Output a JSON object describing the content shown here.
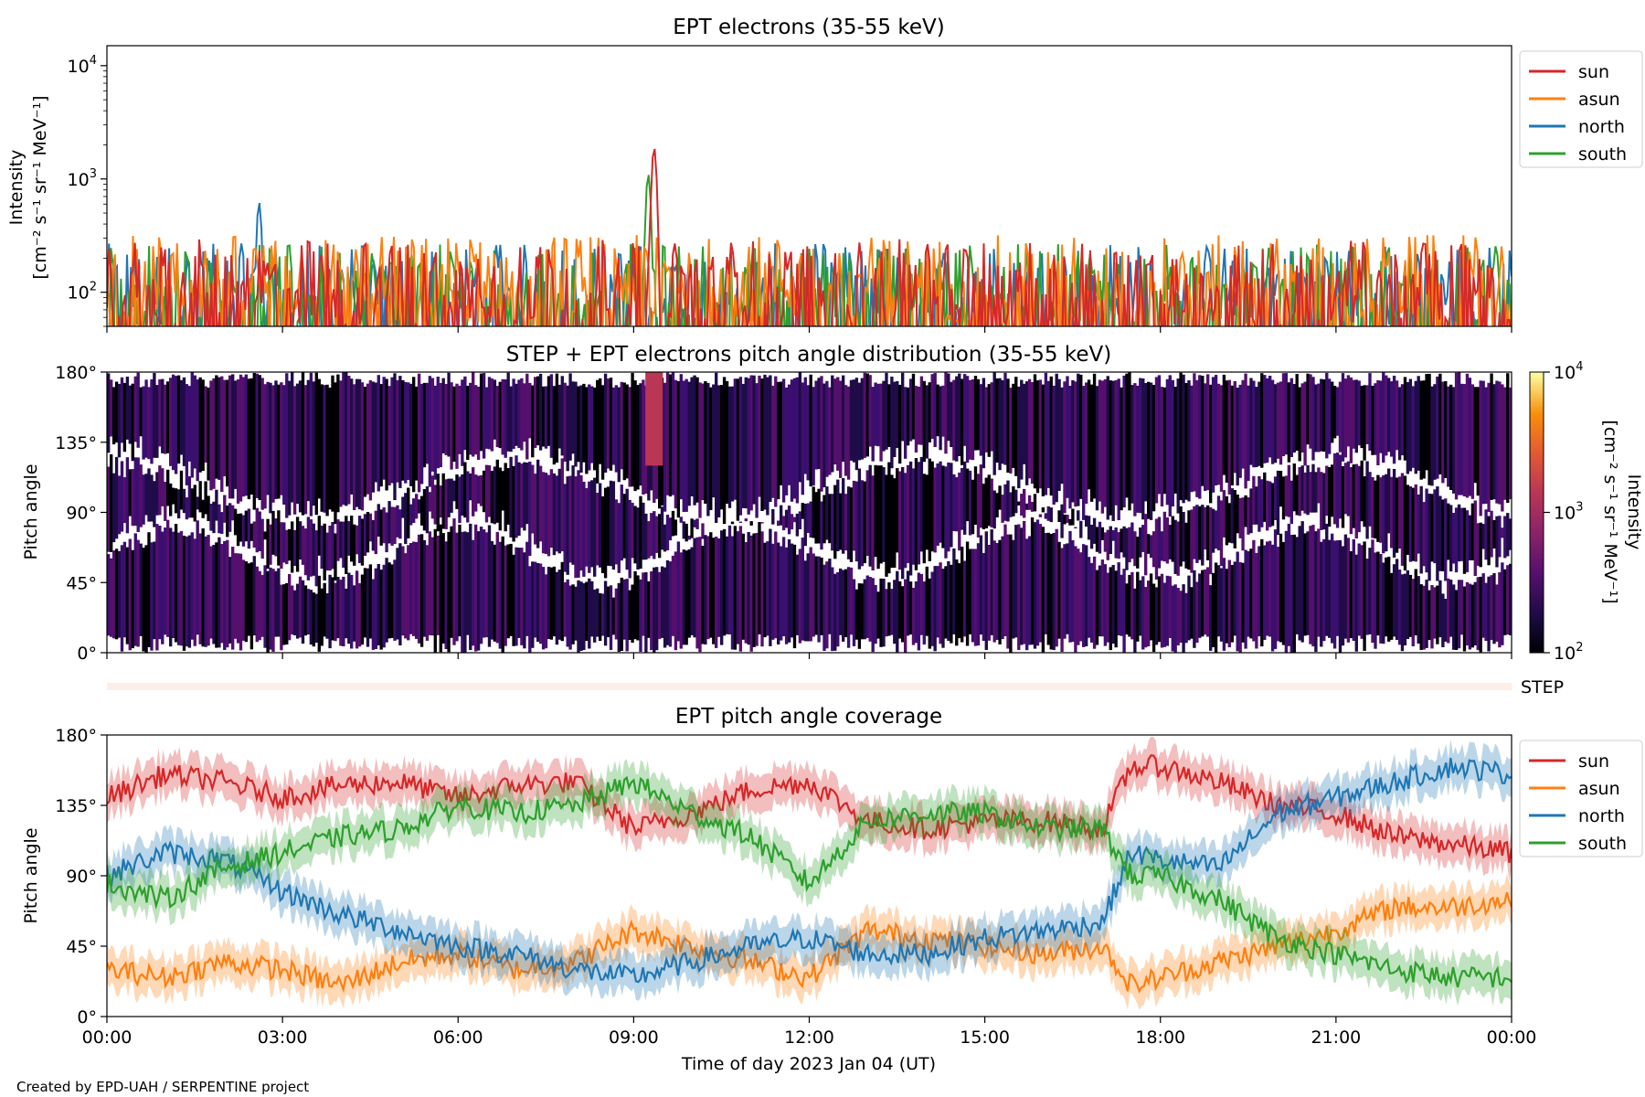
{
  "figure": {
    "credit": "Created by EPD-UAH / SERPENTINE project",
    "xlabel": "Time of day 2023 Jan 04 (UT)",
    "x_ticks": [
      "00:00",
      "03:00",
      "06:00",
      "09:00",
      "12:00",
      "15:00",
      "18:00",
      "21:00",
      "00:00"
    ]
  },
  "chart_data": [
    {
      "id": "intensity",
      "type": "line",
      "title": "EPT electrons (35-55 keV)",
      "ylabel_line1": "Intensity",
      "ylabel_line2": "[cm⁻² s⁻¹ sr⁻¹ MeV⁻¹]",
      "yscale": "log",
      "ylim": [
        50,
        15000
      ],
      "y_ticks": [
        {
          "base": "10",
          "exp": "2",
          "value": 100
        },
        {
          "base": "10",
          "exp": "3",
          "value": 1000
        },
        {
          "base": "10",
          "exp": "4",
          "value": 10000
        }
      ],
      "xlim_hours": [
        0,
        24
      ],
      "legend": {
        "position": "outside right, top",
        "entries": [
          "sun",
          "asun",
          "north",
          "south"
        ]
      },
      "series": [
        {
          "name": "sun",
          "color": "#d62728",
          "baseline": 120,
          "spikes": [
            {
              "x_hours": 9.35,
              "value": 1900
            }
          ],
          "max_background": 420
        },
        {
          "name": "asun",
          "color": "#ff7f0e",
          "baseline": 130,
          "spikes": [],
          "max_background": 560
        },
        {
          "name": "north",
          "color": "#1f77b4",
          "baseline": 110,
          "spikes": [
            {
              "x_hours": 2.6,
              "value": 620
            }
          ],
          "max_background": 420
        },
        {
          "name": "south",
          "color": "#2ca02c",
          "baseline": 110,
          "spikes": [
            {
              "x_hours": 9.25,
              "value": 1100
            }
          ],
          "max_background": 560
        }
      ],
      "grid": false
    },
    {
      "id": "pad",
      "type": "heatmap",
      "title": "STEP + EPT electrons pitch angle distribution (35-55 keV)",
      "ylabel": "Pitch angle",
      "ylim": [
        0,
        180
      ],
      "y_ticks": [
        "0°",
        "45°",
        "90°",
        "135°",
        "180°"
      ],
      "y_tick_values": [
        0,
        45,
        90,
        135,
        180
      ],
      "colorbar": {
        "label_line1": "Intensity",
        "label_line2": "[cm⁻² s⁻¹ sr⁻¹ MeV⁻¹]",
        "scale": "log",
        "range": [
          100,
          10000
        ],
        "ticks": [
          {
            "base": "10",
            "exp": "2",
            "value": 100
          },
          {
            "base": "10",
            "exp": "3",
            "value": 1000
          },
          {
            "base": "10",
            "exp": "4",
            "value": 10000
          }
        ],
        "colormap": "inferno"
      },
      "typical_value": 220,
      "peak": {
        "x_hours": 9.35,
        "pitch_range": [
          120,
          180
        ],
        "value": 1500
      }
    },
    {
      "id": "step",
      "type": "heatmap",
      "label": "STEP",
      "note": "empty STEP coverage strip"
    },
    {
      "id": "coverage",
      "type": "line",
      "title": "EPT pitch angle coverage",
      "ylabel": "Pitch angle",
      "ylim": [
        0,
        180
      ],
      "y_ticks": [
        "0°",
        "45°",
        "90°",
        "135°",
        "180°"
      ],
      "y_tick_values": [
        0,
        45,
        90,
        135,
        180
      ],
      "xlim_hours": [
        0,
        24
      ],
      "band_halfwidth_deg": 12,
      "legend": {
        "position": "outside right, top",
        "entries": [
          "sun",
          "asun",
          "north",
          "south"
        ]
      },
      "series": [
        {
          "name": "sun",
          "color": "#d62728",
          "x_hours": [
            0,
            1,
            2,
            3,
            4,
            5,
            6,
            7,
            8,
            9,
            10,
            11,
            12,
            13,
            14,
            15,
            16,
            17,
            17.5,
            18,
            19,
            20,
            21,
            22,
            23,
            24
          ],
          "values": [
            140,
            155,
            150,
            140,
            148,
            150,
            140,
            148,
            150,
            120,
            130,
            145,
            150,
            125,
            120,
            125,
            125,
            120,
            160,
            160,
            150,
            135,
            130,
            115,
            110,
            105
          ]
        },
        {
          "name": "asun",
          "color": "#ff7f0e",
          "x_hours": [
            0,
            1,
            2,
            3,
            4,
            5,
            6,
            7,
            8,
            9,
            10,
            11,
            12,
            13,
            14,
            15,
            16,
            17,
            17.5,
            18,
            19,
            20,
            21,
            22,
            23,
            24
          ],
          "values": [
            30,
            25,
            35,
            30,
            20,
            35,
            40,
            30,
            35,
            55,
            45,
            35,
            25,
            55,
            50,
            45,
            40,
            45,
            20,
            25,
            35,
            45,
            55,
            70,
            70,
            75
          ]
        },
        {
          "name": "north",
          "color": "#1f77b4",
          "x_hours": [
            0,
            1,
            2,
            3,
            4,
            5,
            6,
            7,
            8,
            9,
            10,
            11,
            12,
            13,
            14,
            15,
            16,
            17,
            17.5,
            18,
            19,
            20,
            21,
            22,
            23,
            24
          ],
          "values": [
            90,
            105,
            100,
            80,
            65,
            55,
            45,
            40,
            30,
            25,
            35,
            45,
            50,
            40,
            40,
            50,
            55,
            60,
            105,
            100,
            95,
            130,
            140,
            150,
            160,
            155
          ]
        },
        {
          "name": "south",
          "color": "#2ca02c",
          "x_hours": [
            0,
            1,
            2,
            3,
            4,
            5,
            6,
            7,
            8,
            9,
            10,
            11,
            12,
            13,
            14,
            15,
            16,
            17,
            17.5,
            18,
            19,
            20,
            21,
            22,
            23,
            24
          ],
          "values": [
            85,
            75,
            95,
            105,
            115,
            120,
            135,
            130,
            135,
            150,
            130,
            115,
            85,
            125,
            130,
            130,
            120,
            120,
            90,
            90,
            75,
            50,
            40,
            30,
            25,
            25
          ]
        }
      ],
      "grid": false
    }
  ]
}
